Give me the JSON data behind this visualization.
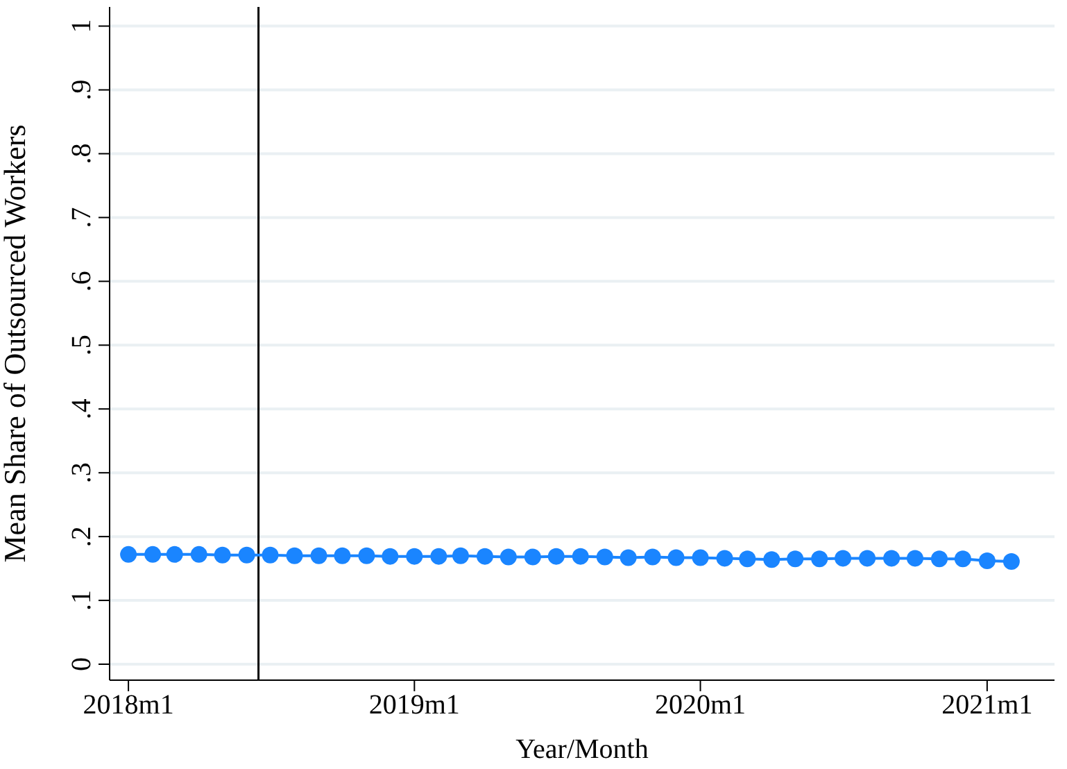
{
  "chart_data": {
    "type": "line",
    "xlabel": "Year/Month",
    "ylabel": "Mean Share of Outsourced Workers",
    "x": [
      "2018-01",
      "2018-02",
      "2018-03",
      "2018-04",
      "2018-05",
      "2018-06",
      "2018-07",
      "2018-08",
      "2018-09",
      "2018-10",
      "2018-11",
      "2018-12",
      "2019-01",
      "2019-02",
      "2019-03",
      "2019-04",
      "2019-05",
      "2019-06",
      "2019-07",
      "2019-08",
      "2019-09",
      "2019-10",
      "2019-11",
      "2019-12",
      "2020-01",
      "2020-02",
      "2020-03",
      "2020-04",
      "2020-05",
      "2020-06",
      "2020-07",
      "2020-08",
      "2020-09",
      "2020-10",
      "2020-11",
      "2020-12",
      "2021-01",
      "2021-02"
    ],
    "series": [
      {
        "color": "#1a85ff",
        "values": [
          0.172,
          0.172,
          0.172,
          0.172,
          0.171,
          0.171,
          0.171,
          0.17,
          0.17,
          0.17,
          0.17,
          0.169,
          0.169,
          0.169,
          0.17,
          0.169,
          0.168,
          0.168,
          0.169,
          0.169,
          0.168,
          0.167,
          0.168,
          0.167,
          0.167,
          0.166,
          0.165,
          0.164,
          0.165,
          0.165,
          0.166,
          0.166,
          0.166,
          0.166,
          0.165,
          0.165,
          0.162,
          0.161
        ]
      }
    ],
    "xlim": [
      "2017-12-08",
      "2021-03-28"
    ],
    "xticks": [
      {
        "value": "2018-01",
        "label": "2018m1"
      },
      {
        "value": "2019-01",
        "label": "2019m1"
      },
      {
        "value": "2020-01",
        "label": "2020m1"
      },
      {
        "value": "2021-01",
        "label": "2021m1"
      }
    ],
    "ylim": [
      -0.025,
      1.03
    ],
    "yticks": [
      0,
      {
        "value": 0.1,
        "label": ".1"
      },
      {
        "value": 0.2,
        "label": ".2"
      },
      {
        "value": 0.3,
        "label": ".3"
      },
      {
        "value": 0.4,
        "label": ".4"
      },
      {
        "value": 0.5,
        "label": ".5"
      },
      {
        "value": 0.6,
        "label": ".6"
      },
      {
        "value": 0.7,
        "label": ".7"
      },
      {
        "value": 0.8,
        "label": ".8"
      },
      {
        "value": 0.9,
        "label": ".9"
      },
      1
    ],
    "ref_lines": [
      {
        "axis": "x",
        "value": "2018-06-16",
        "color": "#000000"
      }
    ],
    "grid": "y",
    "legend": false,
    "marker": "circle",
    "line_style": "solid"
  }
}
